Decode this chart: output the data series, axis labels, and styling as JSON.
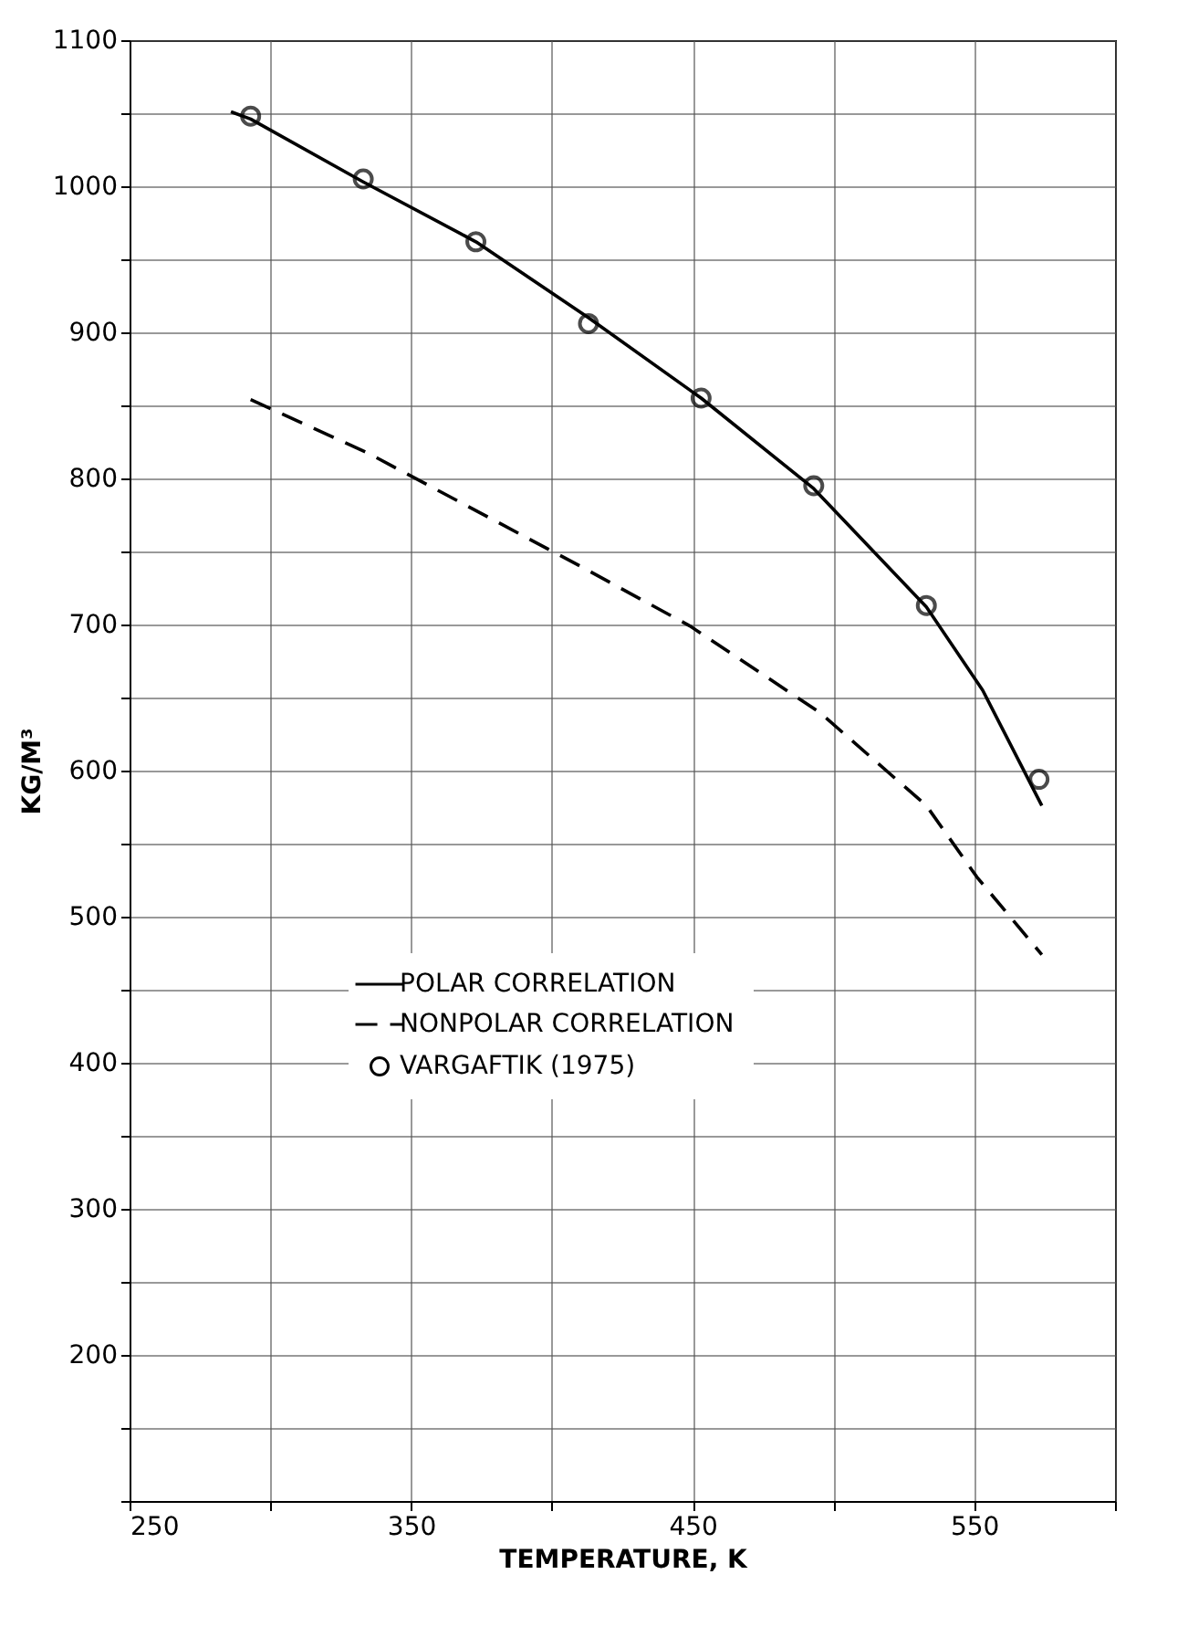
{
  "chart_data": {
    "type": "line",
    "xlabel": "TEMPERATURE, K",
    "ylabel": "KG/M³",
    "xlim": [
      250,
      600
    ],
    "ylim": [
      100,
      1100
    ],
    "xticks": [
      250,
      {
        "value": 300,
        "label": null
      },
      350,
      {
        "value": 400,
        "label": null
      },
      450,
      {
        "value": 500,
        "label": null
      },
      550,
      {
        "value": 600,
        "label": null
      }
    ],
    "yticks": [
      {
        "value": 100,
        "label": null
      },
      {
        "value": 150,
        "label": null
      },
      200,
      {
        "value": 250,
        "label": null
      },
      300,
      {
        "value": 350,
        "label": null
      },
      400,
      {
        "value": 450,
        "label": null
      },
      500,
      {
        "value": 550,
        "label": null
      },
      600,
      {
        "value": 650,
        "label": null
      },
      700,
      {
        "value": 750,
        "label": null
      },
      800,
      {
        "value": 850,
        "label": null
      },
      900,
      {
        "value": 950,
        "label": null
      },
      1000,
      {
        "value": 1050,
        "label": null
      },
      1100
    ],
    "grid": true,
    "legend": "bottom",
    "series": [
      {
        "name": "POLAR CORRELATION",
        "line_style": "solid",
        "color": "#000000",
        "x": [
          286,
          293,
          333,
          373,
          413,
          453,
          493,
          533,
          553,
          574
        ],
        "values": [
          1051,
          1046,
          1003,
          962,
          910,
          855,
          793,
          712,
          655,
          576
        ]
      },
      {
        "name": "NONPOLAR CORRELATION",
        "line_style": "dashed",
        "color": "#000000",
        "x": [
          293,
          335,
          410,
          449,
          495,
          533,
          551,
          574
        ],
        "values": [
          854,
          817,
          740,
          699,
          640,
          576,
          527,
          474
        ]
      },
      {
        "name": "VARGAFTIK (1975)",
        "type": "scatter",
        "marker": "circle",
        "color": "#000000",
        "x": [
          293,
          333,
          373,
          413,
          453,
          493,
          533,
          573
        ],
        "values": [
          1048,
          1005,
          962,
          906,
          855,
          795,
          713,
          594
        ]
      }
    ]
  }
}
